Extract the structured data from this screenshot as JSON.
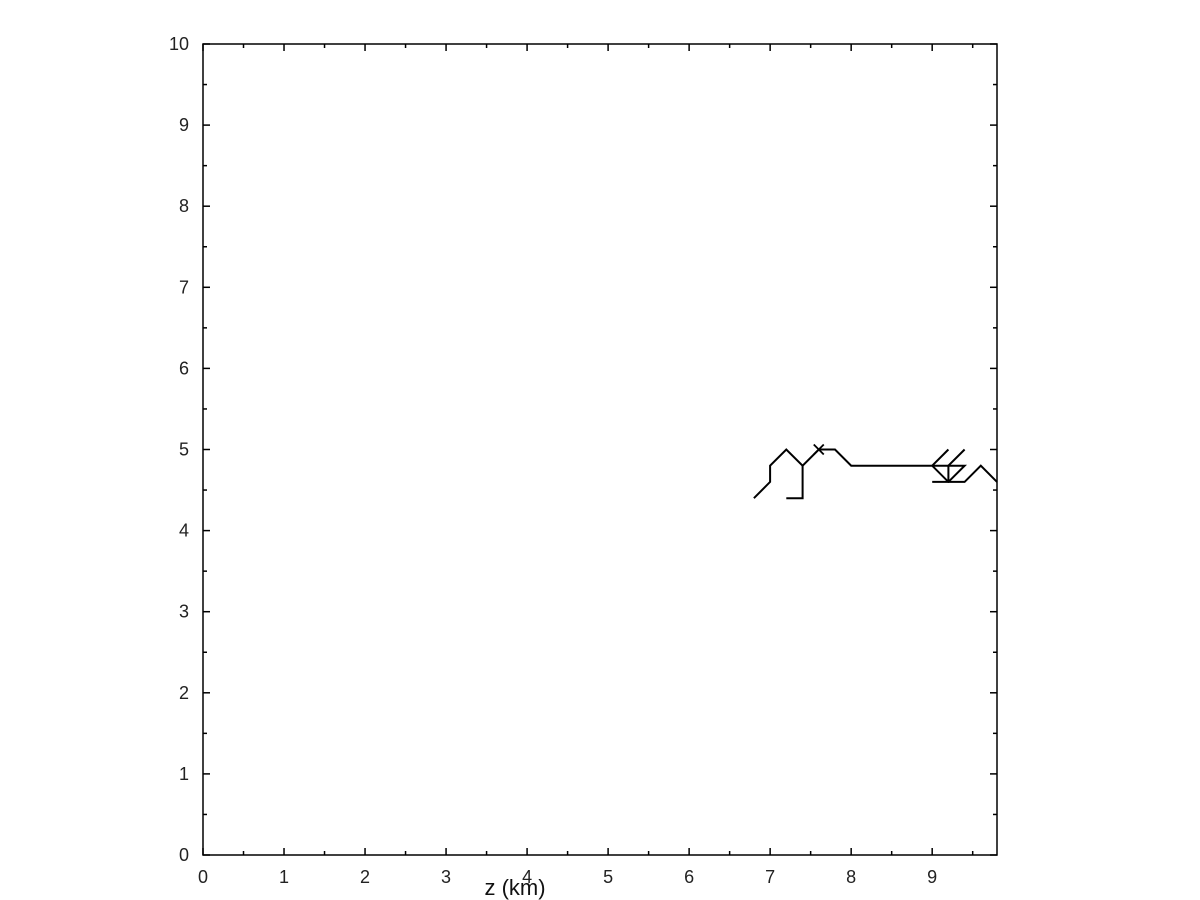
{
  "chart_data": {
    "type": "line",
    "title": "",
    "xlabel": "z (km)",
    "ylabel": "",
    "xlim": [
      0,
      9.8
    ],
    "ylim": [
      0,
      10
    ],
    "x_ticks": [
      0,
      1,
      2,
      3,
      4,
      5,
      6,
      7,
      8,
      9
    ],
    "y_ticks": [
      0,
      1,
      2,
      3,
      4,
      5,
      6,
      7,
      8,
      9,
      10
    ],
    "x_tick_labels": [
      "0",
      "1",
      "2",
      "3",
      "4",
      "5",
      "6",
      "7",
      "8",
      "9"
    ],
    "y_tick_labels": [
      "0",
      "1",
      "2",
      "3",
      "4",
      "5",
      "6",
      "7",
      "8",
      "9",
      "10"
    ],
    "grid": false,
    "legend": "none",
    "line_color": "#000000",
    "series": [
      {
        "points": [
          [
            6.8,
            4.4
          ],
          [
            7.0,
            4.6
          ],
          [
            7.0,
            4.8
          ],
          [
            7.2,
            5.0
          ],
          [
            7.4,
            4.8
          ],
          [
            7.6,
            5.0
          ],
          [
            7.8,
            5.0
          ],
          [
            8.0,
            4.8
          ],
          [
            8.2,
            4.8
          ],
          [
            8.4,
            4.8
          ],
          [
            8.6,
            4.8
          ],
          [
            8.8,
            4.8
          ],
          [
            9.0,
            4.8
          ],
          [
            9.2,
            4.6
          ],
          [
            9.4,
            4.6
          ],
          [
            9.6,
            4.8
          ],
          [
            9.8,
            4.6
          ]
        ]
      },
      {
        "points": [
          [
            7.4,
            4.8
          ],
          [
            7.4,
            4.4
          ],
          [
            7.2,
            4.4
          ]
        ]
      },
      {
        "points": [
          [
            9.0,
            4.8
          ],
          [
            9.2,
            5.0
          ]
        ]
      },
      {
        "points": [
          [
            9.0,
            4.8
          ],
          [
            9.4,
            4.8
          ],
          [
            9.2,
            4.6
          ],
          [
            9.0,
            4.6
          ]
        ]
      },
      {
        "points": [
          [
            9.2,
            4.6
          ],
          [
            9.2,
            4.8
          ],
          [
            9.4,
            5.0
          ]
        ]
      }
    ],
    "markers": [
      {
        "x": 7.6,
        "y": 5.0,
        "symbol": "x"
      }
    ]
  }
}
